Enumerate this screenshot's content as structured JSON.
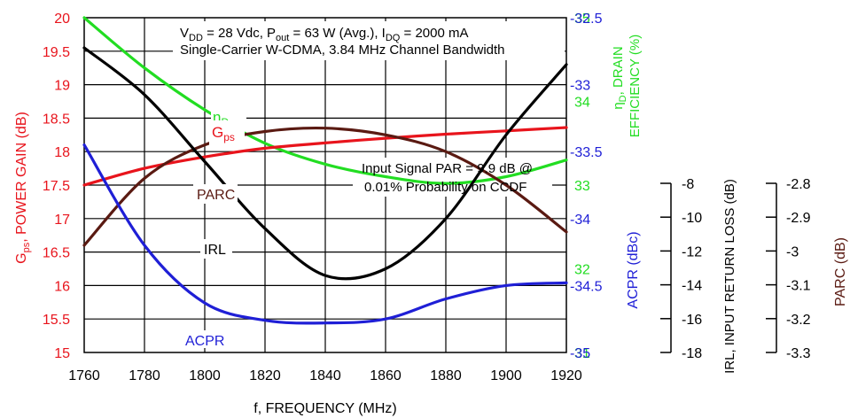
{
  "chart_data": {
    "type": "line",
    "xlabel": "f, FREQUENCY (MHz)",
    "x_ticks": [
      "1760",
      "1780",
      "1800",
      "1820",
      "1840",
      "1860",
      "1880",
      "1900",
      "1920"
    ],
    "xlim": [
      1760,
      1920
    ],
    "axes": {
      "gps": {
        "label_main": "G",
        "label_sub": "ps",
        "label_rest": ", POWER GAIN (dB)",
        "range": [
          15,
          20
        ],
        "ticks": [
          "15",
          "15.5",
          "16",
          "16.5",
          "17",
          "17.5",
          "18",
          "18.5",
          "19",
          "19.5",
          "20"
        ],
        "color": "#e8141c"
      },
      "eff": {
        "label_line1": "η",
        "label_line1_sub": "D",
        "label_line1_rest": ", DRAIN",
        "label_line2": "EFFICIENCY (%)",
        "range": [
          31,
          35
        ],
        "ticks": [
          "31",
          "32",
          "33",
          "34",
          "35"
        ],
        "color": "#22dd22"
      },
      "acpr": {
        "label": "ACPR (dBc)",
        "range": [
          -35,
          -32.5
        ],
        "ticks": [
          "-32.5",
          "-33",
          "-33.5",
          "-34",
          "-34.5",
          "-35"
        ],
        "color": "#1f1fd6"
      },
      "irl": {
        "label": "IRL, INPUT RETURN LOSS (dB)",
        "range": [
          -18,
          -8
        ],
        "ticks": [
          "-8",
          "-10",
          "-12",
          "-14",
          "-16",
          "-18"
        ],
        "color": "#000000"
      },
      "parc": {
        "label": "PARC (dB)",
        "range": [
          -3.3,
          -2.8
        ],
        "ticks": [
          "-2.8",
          "-2.9",
          "-3",
          "-3.1",
          "-3.2",
          "-3.3"
        ],
        "color": "#5a1a12"
      }
    },
    "annotations": {
      "cond_vdd": "V",
      "cond_vdd_sub": "DD",
      "cond_vdd_rest": " = 28 Vdc, P",
      "cond_pout_sub": "out",
      "cond_pout_rest": " = 63 W (Avg.), I",
      "cond_idq_sub": "DQ",
      "cond_idq_rest": " = 2000 mA",
      "cond_line2": "Single-Carrier W-CDMA, 3.84 MHz Channel Bandwidth",
      "par_line1": "Input Signal PAR = 9.9 dB @",
      "par_line2": "0.01% Probability on CCDF"
    },
    "series": [
      {
        "name": "ηD",
        "axis": "eff",
        "color": "#22dd22",
        "x": [
          1760,
          1780,
          1800,
          1820,
          1840,
          1860,
          1880,
          1900,
          1920
        ],
        "y": [
          35.0,
          34.4,
          33.9,
          33.5,
          33.25,
          33.1,
          33.02,
          33.1,
          33.3
        ]
      },
      {
        "name": "Gps",
        "axis": "gps",
        "color": "#e8141c",
        "x": [
          1760,
          1780,
          1800,
          1820,
          1840,
          1860,
          1880,
          1900,
          1920
        ],
        "y": [
          17.5,
          17.75,
          17.92,
          18.05,
          18.13,
          18.2,
          18.26,
          18.31,
          18.36
        ]
      },
      {
        "name": "PARC",
        "axis": "parc",
        "color": "#5a1a12",
        "x": [
          1760,
          1780,
          1800,
          1820,
          1840,
          1860,
          1880,
          1900,
          1920
        ],
        "y": [
          -3.14,
          -3.04,
          -2.99,
          -2.97,
          -2.965,
          -2.975,
          -3.0,
          -3.05,
          -3.12
        ]
      },
      {
        "name": "IRL",
        "axis": "irl",
        "color": "#000000",
        "x": [
          1760,
          1780,
          1800,
          1820,
          1840,
          1860,
          1880,
          1900,
          1920
        ],
        "y": [
          -8.9,
          -10.3,
          -12.3,
          -14.3,
          -15.7,
          -15.5,
          -14.0,
          -11.5,
          -9.4
        ]
      },
      {
        "name": "ACPR",
        "axis": "acpr",
        "color": "#1f1fd6",
        "x": [
          1760,
          1780,
          1800,
          1820,
          1840,
          1860,
          1880,
          1900,
          1920
        ],
        "y": [
          -33.45,
          -34.2,
          -34.63,
          -34.76,
          -34.78,
          -34.75,
          -34.6,
          -34.5,
          -34.48
        ]
      }
    ]
  }
}
